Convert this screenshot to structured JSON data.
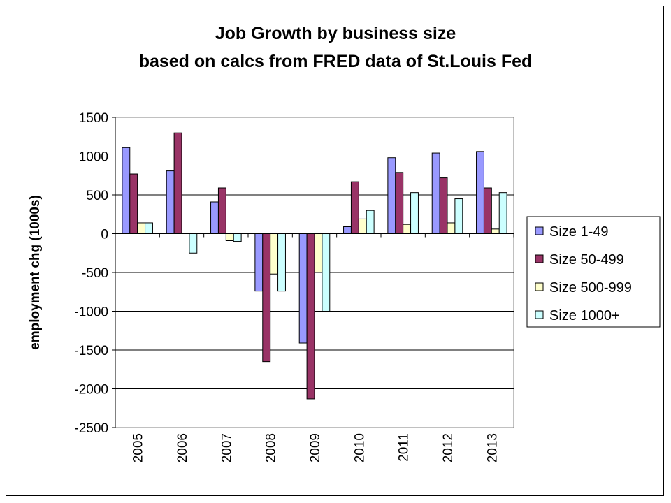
{
  "chart_data": {
    "type": "bar",
    "title": [
      "Job Growth by business size",
      "based on calcs from FRED data of St.Louis Fed"
    ],
    "xlabel": "",
    "ylabel": "employment chg (1000s)",
    "ylim": [
      -2500,
      1500
    ],
    "yticks": [
      1500,
      1000,
      500,
      0,
      -500,
      -1000,
      -1500,
      -2000,
      -2500
    ],
    "grid": true,
    "legend_position": "right",
    "categories": [
      "2005",
      "2006",
      "2007",
      "2008",
      "2009",
      "2010",
      "2011",
      "2012",
      "2013"
    ],
    "series": [
      {
        "name": "Size 1-49",
        "color": "#9999ff",
        "values": [
          1110,
          810,
          410,
          -740,
          -1410,
          90,
          980,
          1040,
          1060
        ]
      },
      {
        "name": "Size 50-499",
        "color": "#993366",
        "values": [
          770,
          1300,
          590,
          -1650,
          -2130,
          670,
          790,
          720,
          590
        ]
      },
      {
        "name": "Size 500-999",
        "color": "#ffffcc",
        "values": [
          140,
          0,
          -90,
          -520,
          -500,
          190,
          120,
          140,
          60
        ]
      },
      {
        "name": "Size 1000+",
        "color": "#ccffff",
        "values": [
          140,
          -250,
          -100,
          -740,
          -1000,
          300,
          530,
          450,
          530
        ]
      }
    ]
  }
}
